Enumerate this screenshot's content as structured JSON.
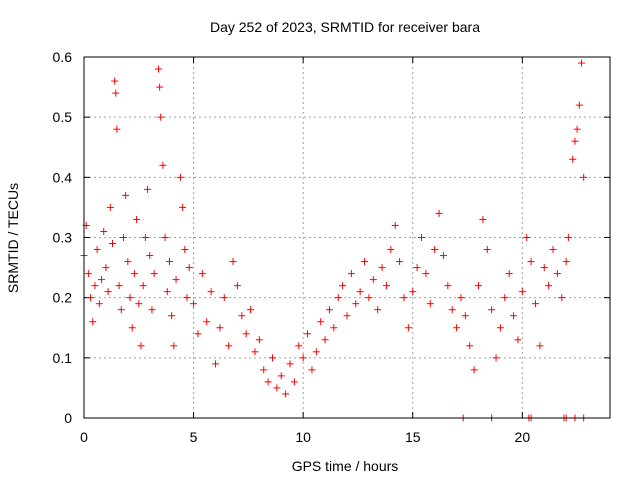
{
  "chart_data": {
    "type": "scatter",
    "title": "Day 252 of 2023, SRMTID for receiver bara",
    "xlabel": "GPS time / hours",
    "ylabel": "SRMTID / TECUs",
    "xlim": [
      0,
      24
    ],
    "ylim": [
      0,
      0.6
    ],
    "xticks": [
      0,
      5,
      10,
      15,
      20
    ],
    "yticks": [
      0,
      0.1,
      0.2,
      0.3,
      0.4,
      0.5,
      0.6
    ],
    "xtick_labels": [
      "0",
      "5",
      "10",
      "15",
      "20"
    ],
    "ytick_labels": [
      "0",
      "0.1",
      "0.2",
      "0.3",
      "0.4",
      "0.5",
      "0.6"
    ],
    "grid": true,
    "marker": "+",
    "color": "#ff0000",
    "series": [
      {
        "name": "SRMTID",
        "points": [
          [
            0.0,
            0.27
          ],
          [
            0.1,
            0.32
          ],
          [
            0.2,
            0.24
          ],
          [
            0.3,
            0.2
          ],
          [
            0.4,
            0.16
          ],
          [
            0.5,
            0.22
          ],
          [
            0.6,
            0.28
          ],
          [
            0.7,
            0.19
          ],
          [
            0.8,
            0.23
          ],
          [
            0.9,
            0.31
          ],
          [
            1.0,
            0.25
          ],
          [
            1.1,
            0.21
          ],
          [
            1.2,
            0.35
          ],
          [
            1.3,
            0.29
          ],
          [
            1.4,
            0.56
          ],
          [
            1.45,
            0.54
          ],
          [
            1.5,
            0.48
          ],
          [
            1.6,
            0.22
          ],
          [
            1.7,
            0.18
          ],
          [
            1.8,
            0.3
          ],
          [
            1.9,
            0.37
          ],
          [
            2.0,
            0.26
          ],
          [
            2.1,
            0.2
          ],
          [
            2.2,
            0.15
          ],
          [
            2.3,
            0.24
          ],
          [
            2.4,
            0.33
          ],
          [
            2.5,
            0.19
          ],
          [
            2.6,
            0.12
          ],
          [
            2.7,
            0.22
          ],
          [
            2.8,
            0.3
          ],
          [
            2.9,
            0.38
          ],
          [
            3.0,
            0.27
          ],
          [
            3.1,
            0.18
          ],
          [
            3.2,
            0.24
          ],
          [
            3.4,
            0.58
          ],
          [
            3.45,
            0.55
          ],
          [
            3.5,
            0.5
          ],
          [
            3.6,
            0.42
          ],
          [
            3.7,
            0.3
          ],
          [
            3.8,
            0.21
          ],
          [
            3.9,
            0.26
          ],
          [
            4.0,
            0.17
          ],
          [
            4.1,
            0.12
          ],
          [
            4.2,
            0.23
          ],
          [
            4.4,
            0.4
          ],
          [
            4.5,
            0.35
          ],
          [
            4.6,
            0.28
          ],
          [
            4.7,
            0.2
          ],
          [
            4.8,
            0.25
          ],
          [
            5.0,
            0.19
          ],
          [
            5.2,
            0.14
          ],
          [
            5.4,
            0.24
          ],
          [
            5.6,
            0.16
          ],
          [
            5.8,
            0.21
          ],
          [
            6.0,
            0.09
          ],
          [
            6.2,
            0.15
          ],
          [
            6.4,
            0.2
          ],
          [
            6.6,
            0.12
          ],
          [
            6.8,
            0.26
          ],
          [
            7.0,
            0.22
          ],
          [
            7.2,
            0.17
          ],
          [
            7.4,
            0.14
          ],
          [
            7.6,
            0.18
          ],
          [
            7.8,
            0.11
          ],
          [
            8.0,
            0.13
          ],
          [
            8.2,
            0.08
          ],
          [
            8.4,
            0.06
          ],
          [
            8.6,
            0.1
          ],
          [
            8.8,
            0.05
          ],
          [
            9.0,
            0.07
          ],
          [
            9.2,
            0.04
          ],
          [
            9.4,
            0.09
          ],
          [
            9.6,
            0.06
          ],
          [
            9.8,
            0.12
          ],
          [
            10.0,
            0.1
          ],
          [
            10.2,
            0.14
          ],
          [
            10.4,
            0.08
          ],
          [
            10.6,
            0.11
          ],
          [
            10.8,
            0.16
          ],
          [
            11.0,
            0.13
          ],
          [
            11.2,
            0.18
          ],
          [
            11.4,
            0.15
          ],
          [
            11.6,
            0.2
          ],
          [
            11.8,
            0.22
          ],
          [
            12.0,
            0.17
          ],
          [
            12.2,
            0.24
          ],
          [
            12.4,
            0.19
          ],
          [
            12.6,
            0.21
          ],
          [
            12.8,
            0.26
          ],
          [
            13.0,
            0.2
          ],
          [
            13.2,
            0.23
          ],
          [
            13.4,
            0.18
          ],
          [
            13.6,
            0.25
          ],
          [
            13.8,
            0.22
          ],
          [
            14.0,
            0.28
          ],
          [
            14.2,
            0.32
          ],
          [
            14.4,
            0.26
          ],
          [
            14.6,
            0.2
          ],
          [
            14.8,
            0.15
          ],
          [
            15.0,
            0.21
          ],
          [
            15.2,
            0.25
          ],
          [
            15.4,
            0.3
          ],
          [
            15.6,
            0.24
          ],
          [
            15.8,
            0.19
          ],
          [
            16.0,
            0.28
          ],
          [
            16.2,
            0.34
          ],
          [
            16.4,
            0.27
          ],
          [
            16.6,
            0.22
          ],
          [
            16.8,
            0.18
          ],
          [
            17.0,
            0.15
          ],
          [
            17.2,
            0.2
          ],
          [
            17.4,
            0.17
          ],
          [
            17.6,
            0.12
          ],
          [
            17.8,
            0.08
          ],
          [
            18.0,
            0.22
          ],
          [
            18.2,
            0.33
          ],
          [
            18.4,
            0.28
          ],
          [
            18.6,
            0.18
          ],
          [
            18.8,
            0.1
          ],
          [
            19.0,
            0.15
          ],
          [
            19.2,
            0.2
          ],
          [
            19.4,
            0.24
          ],
          [
            19.6,
            0.17
          ],
          [
            19.8,
            0.13
          ],
          [
            20.0,
            0.21
          ],
          [
            20.2,
            0.3
          ],
          [
            20.4,
            0.26
          ],
          [
            20.6,
            0.19
          ],
          [
            20.8,
            0.12
          ],
          [
            21.0,
            0.25
          ],
          [
            21.2,
            0.22
          ],
          [
            21.4,
            0.28
          ],
          [
            21.6,
            0.24
          ],
          [
            21.8,
            0.2
          ],
          [
            22.0,
            0.26
          ],
          [
            22.1,
            0.3
          ],
          [
            22.3,
            0.43
          ],
          [
            22.4,
            0.46
          ],
          [
            22.5,
            0.48
          ],
          [
            22.6,
            0.52
          ],
          [
            22.7,
            0.59
          ],
          [
            22.8,
            0.4
          ],
          [
            17.3,
            0
          ],
          [
            18.6,
            0
          ],
          [
            20.3,
            0
          ],
          [
            20.4,
            0
          ],
          [
            21.9,
            0
          ],
          [
            22.0,
            0
          ],
          [
            22.4,
            0
          ],
          [
            22.8,
            0
          ]
        ]
      }
    ]
  }
}
